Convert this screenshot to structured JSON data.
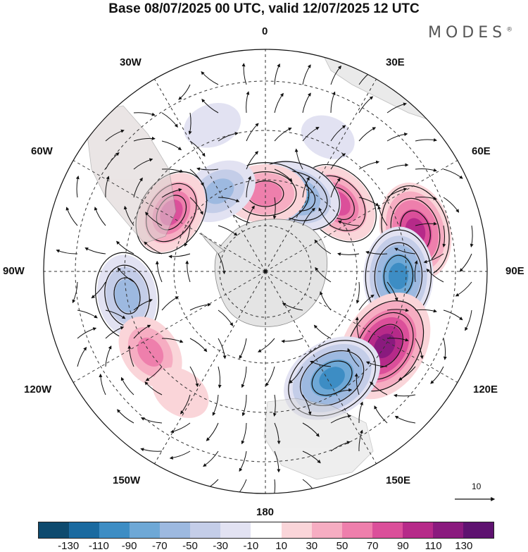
{
  "title": "Base 08/07/2025 00 UTC, valid 12/07/2025 12 UTC",
  "brand": "MODES",
  "brand_mark": "®",
  "longitude_labels": {
    "lon_0": "0",
    "lon_30e": "30E",
    "lon_60e": "60E",
    "lon_90e": "90E",
    "lon_120e": "120E",
    "lon_150e": "150E",
    "lon_180": "180",
    "lon_150w": "150W",
    "lon_120w": "120W",
    "lon_90w": "90W",
    "lon_60w": "60W",
    "lon_30w": "30W"
  },
  "reference_vector_label": "10",
  "colorbar": {
    "colors": [
      "#0d4a6e",
      "#1a6aa0",
      "#3d8dc4",
      "#6ea8d6",
      "#9db9e0",
      "#c4cde8",
      "#e2e2f2",
      "#ffffff",
      "#fad5d9",
      "#f6adc2",
      "#ee7fac",
      "#db4f9a",
      "#b62a89",
      "#8a1a7e",
      "#5e1270"
    ],
    "tick_labels": [
      "-130",
      "-110",
      "-90",
      "-70",
      "-50",
      "-30",
      "-10",
      "10",
      "30",
      "50",
      "70",
      "90",
      "110",
      "130"
    ]
  },
  "anomaly_centers": [
    {
      "lon": 75,
      "colat": 42,
      "value": 95
    },
    {
      "lon": 92,
      "colat": 36,
      "value": -95
    },
    {
      "lon": 122,
      "colat": 38,
      "value": 125
    },
    {
      "lon": 148,
      "colat": 34,
      "value": -105
    },
    {
      "lon": 47,
      "colat": 27,
      "value": 70
    },
    {
      "lon": 22,
      "colat": 22,
      "value": -85
    },
    {
      "lon": 0,
      "colat": 21,
      "value": 65
    },
    {
      "lon": -30,
      "colat": 25,
      "value": -55
    },
    {
      "lon": -58,
      "colat": 30,
      "value": 70
    },
    {
      "lon": -100,
      "colat": 38,
      "value": -65
    },
    {
      "lon": -125,
      "colat": 38,
      "value": 55
    },
    {
      "lon": -145,
      "colat": 40,
      "value": 25
    },
    {
      "lon": -20,
      "colat": 42,
      "value": -20
    },
    {
      "lon": 25,
      "colat": 40,
      "value": -15
    }
  ]
}
